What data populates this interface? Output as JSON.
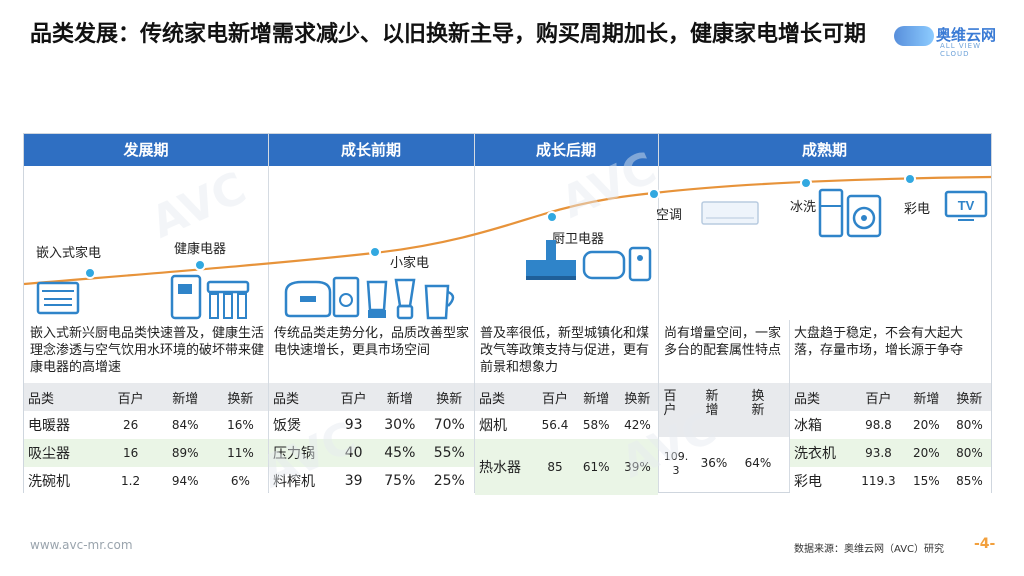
{
  "title": "品类发展：传统家电新增需求减少、以旧换新主导，购买周期加长，健康家电增长可期",
  "logo": {
    "cn": "奥维云网",
    "en": "ALL VIEW CLOUD"
  },
  "phases": [
    "发展期",
    "成长前期",
    "成长后期",
    "成熟期"
  ],
  "curve_labels": {
    "builtin": "嵌入式家电",
    "health": "健康电器",
    "small": "小家电",
    "kitchen": "厨卫电器",
    "ac": "空调",
    "fridge_washer": "冰洗",
    "tv": "彩电"
  },
  "icons": [
    "oven-icon",
    "water-purifier-icon",
    "rice-cooker-icon",
    "blender-icon",
    "range-hood-icon",
    "water-heater-icon",
    "air-conditioner-icon",
    "fridge-icon",
    "washer-icon",
    "tv-icon"
  ],
  "descriptions": [
    "嵌入式新兴厨电品类快速普及，健康生活理念渗透与空气饮用水环境的破坏带来健康电器的高增速",
    "传统品类走势分化，品质改善型家电快速增长，更具市场空间",
    "普及率很低，新型城镇化和煤改气等政策支持与促进，更有前景和想象力",
    "尚有增量空间，一家多台的配套属性特点",
    "大盘趋于稳定，不会有大起大落，存量市场，增长源于争夺"
  ],
  "headers": {
    "cat": "品类",
    "hh": "百户",
    "new": "新增",
    "rep": "换新",
    "hh_v": "百户",
    "new_v": "新增",
    "rep_v": "换新"
  },
  "table1": [
    {
      "cat": "电暖器",
      "hh": "26",
      "new": "84%",
      "rep": "16%"
    },
    {
      "cat": "吸尘器",
      "hh": "16",
      "new": "89%",
      "rep": "11%"
    },
    {
      "cat": "洗碗机",
      "hh": "1.2",
      "new": "94%",
      "rep": "6%"
    }
  ],
  "table2": [
    {
      "cat": "饭煲",
      "hh": "93",
      "new": "30%",
      "rep": "70%"
    },
    {
      "cat": "压力锅",
      "hh": "40",
      "new": "45%",
      "rep": "55%"
    },
    {
      "cat": "料榨机",
      "hh": "39",
      "new": "75%",
      "rep": "25%"
    }
  ],
  "table3": [
    {
      "cat": "烟机",
      "hh": "56.4",
      "new": "58%",
      "rep": "42%"
    },
    {
      "cat": "热水器",
      "hh": "85",
      "new": "61%",
      "rep": "39%"
    }
  ],
  "table4": {
    "hh": "109.3",
    "new": "36%",
    "rep": "64%"
  },
  "table5": [
    {
      "cat": "冰箱",
      "hh": "98.8",
      "new": "20%",
      "rep": "80%"
    },
    {
      "cat": "洗衣机",
      "hh": "93.8",
      "new": "20%",
      "rep": "80%"
    },
    {
      "cat": "彩电",
      "hh": "119.3",
      "new": "15%",
      "rep": "85%"
    }
  ],
  "footer": {
    "url": "www.avc-mr.com",
    "source": "数据来源：奥维云网（AVC）研究",
    "page": "-4-"
  },
  "watermark": "AVC",
  "colors": {
    "header": "#2f6fc2",
    "curve": "#e7933a",
    "dot": "#32a8e0",
    "alt_row": "#eaf5e6",
    "icon": "#2f84c9"
  }
}
